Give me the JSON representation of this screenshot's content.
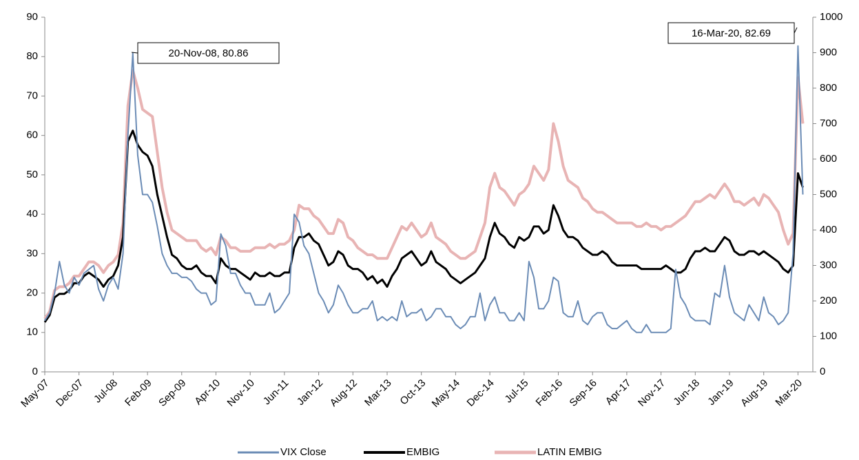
{
  "chart_data": {
    "type": "line",
    "categories": [
      "May-07",
      null,
      null,
      null,
      null,
      null,
      null,
      "Dec-07",
      null,
      null,
      null,
      null,
      null,
      null,
      "Jul-08",
      null,
      null,
      null,
      null,
      null,
      null,
      "Feb-09",
      null,
      null,
      null,
      null,
      null,
      null,
      "Sep-09",
      null,
      null,
      null,
      null,
      null,
      null,
      "Apr-10",
      null,
      null,
      null,
      null,
      null,
      null,
      "Nov-10",
      null,
      null,
      null,
      null,
      null,
      null,
      "Jun-11",
      null,
      null,
      null,
      null,
      null,
      null,
      "Jan-12",
      null,
      null,
      null,
      null,
      null,
      null,
      "Aug-12",
      null,
      null,
      null,
      null,
      null,
      null,
      "Mar-13",
      null,
      null,
      null,
      null,
      null,
      null,
      "Oct-13",
      null,
      null,
      null,
      null,
      null,
      null,
      "May-14",
      null,
      null,
      null,
      null,
      null,
      null,
      "Dec-14",
      null,
      null,
      null,
      null,
      null,
      null,
      "Jul-15",
      null,
      null,
      null,
      null,
      null,
      null,
      "Feb-16",
      null,
      null,
      null,
      null,
      null,
      null,
      "Sep-16",
      null,
      null,
      null,
      null,
      null,
      null,
      "Apr-17",
      null,
      null,
      null,
      null,
      null,
      null,
      "Nov-17",
      null,
      null,
      null,
      null,
      null,
      null,
      "Jun-18",
      null,
      null,
      null,
      null,
      null,
      null,
      "Jan-19",
      null,
      null,
      null,
      null,
      null,
      null,
      "Aug-19",
      null,
      null,
      null,
      null,
      null,
      null,
      "Mar-20",
      null
    ],
    "series": [
      {
        "name": "VIX Close",
        "color": "#6a8bb5",
        "axis": "y",
        "values": [
          13,
          15,
          20,
          28,
          22,
          20,
          24,
          22,
          25,
          26,
          27,
          21,
          18,
          22,
          24,
          21,
          30,
          60,
          80.86,
          55,
          45,
          45,
          43,
          37,
          30,
          27,
          25,
          25,
          24,
          24,
          23,
          21,
          20,
          20,
          17,
          18,
          35,
          32,
          25,
          25,
          22,
          20,
          20,
          17,
          17,
          17,
          20,
          15,
          16,
          18,
          20,
          40,
          38,
          32,
          30,
          25,
          20,
          18,
          15,
          17,
          22,
          20,
          17,
          15,
          15,
          16,
          16,
          18,
          13,
          14,
          13,
          14,
          13,
          18,
          14,
          15,
          15,
          16,
          13,
          14,
          16,
          16,
          14,
          14,
          12,
          11,
          12,
          14,
          14,
          20,
          13,
          17,
          19,
          15,
          15,
          13,
          13,
          15,
          13,
          28,
          24,
          16,
          16,
          18,
          24,
          23,
          15,
          14,
          14,
          18,
          13,
          12,
          14,
          15,
          15,
          12,
          11,
          11,
          12,
          13,
          11,
          10,
          10,
          12,
          10,
          10,
          10,
          10,
          11,
          26,
          19,
          17,
          14,
          13,
          13,
          13,
          12,
          20,
          19,
          27,
          19,
          15,
          14,
          13,
          17,
          15,
          13,
          19,
          15,
          14,
          12,
          13,
          15,
          30,
          82.69,
          45
        ]
      },
      {
        "name": "EMBIG",
        "color": "#000000",
        "axis": "y2",
        "values": [
          140,
          160,
          210,
          220,
          220,
          230,
          250,
          250,
          270,
          280,
          270,
          260,
          240,
          260,
          270,
          300,
          380,
          650,
          680,
          640,
          620,
          610,
          580,
          500,
          440,
          380,
          330,
          320,
          300,
          290,
          290,
          300,
          280,
          270,
          270,
          250,
          320,
          300,
          290,
          290,
          280,
          270,
          260,
          280,
          270,
          270,
          280,
          270,
          270,
          280,
          280,
          350,
          380,
          380,
          390,
          370,
          360,
          330,
          300,
          310,
          340,
          330,
          300,
          290,
          290,
          280,
          260,
          270,
          250,
          260,
          240,
          270,
          290,
          320,
          330,
          340,
          320,
          300,
          310,
          340,
          310,
          300,
          290,
          270,
          260,
          250,
          260,
          270,
          280,
          300,
          320,
          380,
          420,
          390,
          380,
          360,
          350,
          380,
          370,
          380,
          410,
          410,
          390,
          400,
          470,
          440,
          400,
          380,
          380,
          370,
          350,
          340,
          330,
          330,
          340,
          330,
          310,
          300,
          300,
          300,
          300,
          300,
          290,
          290,
          290,
          290,
          290,
          300,
          290,
          280,
          280,
          290,
          320,
          340,
          340,
          350,
          340,
          340,
          360,
          380,
          370,
          340,
          330,
          330,
          340,
          340,
          330,
          340,
          330,
          320,
          310,
          290,
          280,
          300,
          560,
          520
        ]
      },
      {
        "name": "LATIN EMBIG",
        "color": "#e8b4b4",
        "axis": "y2",
        "values": [
          150,
          170,
          230,
          240,
          240,
          250,
          270,
          270,
          290,
          310,
          310,
          300,
          280,
          300,
          310,
          330,
          420,
          750,
          850,
          800,
          740,
          730,
          720,
          620,
          520,
          450,
          400,
          390,
          380,
          370,
          370,
          370,
          350,
          340,
          350,
          330,
          380,
          370,
          350,
          350,
          340,
          340,
          340,
          350,
          350,
          350,
          360,
          350,
          360,
          360,
          370,
          400,
          470,
          460,
          460,
          440,
          430,
          410,
          390,
          390,
          430,
          420,
          380,
          370,
          350,
          340,
          330,
          330,
          320,
          320,
          320,
          350,
          380,
          410,
          400,
          420,
          400,
          380,
          390,
          420,
          380,
          370,
          360,
          340,
          330,
          320,
          320,
          330,
          340,
          380,
          420,
          520,
          560,
          520,
          510,
          490,
          470,
          500,
          510,
          530,
          580,
          560,
          540,
          570,
          700,
          650,
          580,
          540,
          530,
          520,
          490,
          480,
          460,
          450,
          450,
          440,
          430,
          420,
          420,
          420,
          420,
          410,
          410,
          420,
          410,
          410,
          400,
          410,
          410,
          420,
          430,
          440,
          460,
          480,
          480,
          490,
          500,
          490,
          510,
          530,
          510,
          480,
          480,
          470,
          480,
          490,
          470,
          500,
          490,
          470,
          450,
          400,
          360,
          390,
          830,
          700
        ]
      }
    ],
    "ylim": [
      0,
      90
    ],
    "yticks": [
      0,
      10,
      20,
      30,
      40,
      50,
      60,
      70,
      80,
      90
    ],
    "y2lim": [
      0,
      1000
    ],
    "y2ticks": [
      0,
      100,
      200,
      300,
      400,
      500,
      600,
      700,
      800,
      900,
      1000
    ],
    "annotations": [
      "20-Nov-08, 80.86",
      "16-Mar-20, 82.69"
    ],
    "legend": "bottom",
    "grid": false
  }
}
